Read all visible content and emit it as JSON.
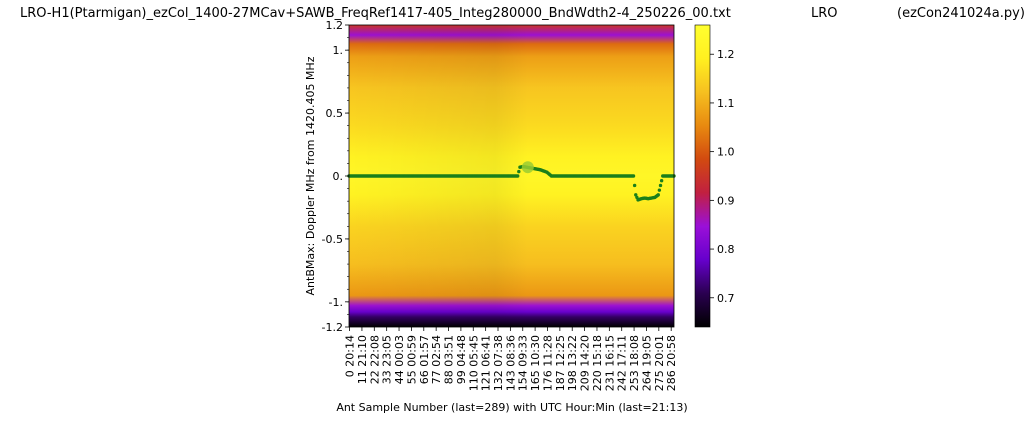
{
  "titles": {
    "main": "LRO-H1(Ptarmigan)_ezCol_1400-27MCav+SAWB_FreqRef1417-405_Integ280000_BndWdth2-4_250226_00.txt",
    "mid": "LRO",
    "right": "(ezCon241024a.py)"
  },
  "chart_data": {
    "type": "heatmap",
    "xlabel": "Ant Sample Number (last=289) with UTC Hour:Min (last=21:13)",
    "ylabel": "AntBMax:  Doppler MHz from 1420.405 MHz",
    "xlim": [
      0,
      289
    ],
    "ylim": [
      -1.2,
      1.2
    ],
    "y_ticks": [
      {
        "value": 1.2,
        "label": "1.2"
      },
      {
        "value": 1.0,
        "label": "1."
      },
      {
        "value": 0.5,
        "label": "0.5"
      },
      {
        "value": 0.0,
        "label": "0."
      },
      {
        "value": -0.5,
        "label": "-0.5"
      },
      {
        "value": -1.0,
        "label": "-1."
      },
      {
        "value": -1.2,
        "label": "-1.2"
      }
    ],
    "x_ticks": [
      {
        "value": 0,
        "label": "0  20:14"
      },
      {
        "value": 11,
        "label": "11  21:10"
      },
      {
        "value": 22,
        "label": "22  22:08"
      },
      {
        "value": 33,
        "label": "33  23:05"
      },
      {
        "value": 44,
        "label": "44  00:03"
      },
      {
        "value": 55,
        "label": "55  00:59"
      },
      {
        "value": 66,
        "label": "66  01:57"
      },
      {
        "value": 77,
        "label": "77  02:54"
      },
      {
        "value": 88,
        "label": "88  03:51"
      },
      {
        "value": 99,
        "label": "99  04:48"
      },
      {
        "value": 110,
        "label": "110  05:45"
      },
      {
        "value": 121,
        "label": "121  06:41"
      },
      {
        "value": 132,
        "label": "132  07:38"
      },
      {
        "value": 143,
        "label": "143  08:36"
      },
      {
        "value": 154,
        "label": "154  09:33"
      },
      {
        "value": 165,
        "label": "165  10:30"
      },
      {
        "value": 176,
        "label": "176  11:28"
      },
      {
        "value": 187,
        "label": "187  12:25"
      },
      {
        "value": 198,
        "label": "198  13:22"
      },
      {
        "value": 209,
        "label": "209  14:20"
      },
      {
        "value": 220,
        "label": "220  15:18"
      },
      {
        "value": 231,
        "label": "231  16:15"
      },
      {
        "value": 242,
        "label": "242  17:11"
      },
      {
        "value": 253,
        "label": "253  18:08"
      },
      {
        "value": 264,
        "label": "264  19:05"
      },
      {
        "value": 275,
        "label": "275  20:01"
      },
      {
        "value": 286,
        "label": "286  20:58"
      }
    ],
    "colorbar": {
      "min": 0.64,
      "max": 1.26,
      "ticks": [
        {
          "value": 1.2,
          "label": "1.2"
        },
        {
          "value": 1.1,
          "label": "1.1"
        },
        {
          "value": 1.0,
          "label": "1.0"
        },
        {
          "value": 0.9,
          "label": "0.9"
        },
        {
          "value": 0.8,
          "label": "0.8"
        },
        {
          "value": 0.7,
          "label": "0.7"
        }
      ],
      "colormap": [
        "#000000",
        "#2a0050",
        "#6600cc",
        "#9a10d8",
        "#c12040",
        "#d24a10",
        "#e88a10",
        "#f6c020",
        "#fff020",
        "#ffff30"
      ]
    },
    "heatmap_profile": [
      {
        "y": 1.2,
        "value": 0.95
      },
      {
        "y": 1.12,
        "value": 0.85
      },
      {
        "y": 1.05,
        "value": 1.02
      },
      {
        "y": 0.95,
        "value": 1.08
      },
      {
        "y": 0.7,
        "value": 1.13
      },
      {
        "y": 0.4,
        "value": 1.16
      },
      {
        "y": 0.15,
        "value": 1.2
      },
      {
        "y": 0.0,
        "value": 1.22
      },
      {
        "y": -0.15,
        "value": 1.2
      },
      {
        "y": -0.4,
        "value": 1.15
      },
      {
        "y": -0.7,
        "value": 1.12
      },
      {
        "y": -0.95,
        "value": 1.07
      },
      {
        "y": -1.03,
        "value": 0.85
      },
      {
        "y": -1.08,
        "value": 0.78
      },
      {
        "y": -1.12,
        "value": 0.72
      },
      {
        "y": -1.2,
        "value": 0.64
      }
    ],
    "series": [
      {
        "points": [
          [
            0,
            0.0
          ],
          [
            150,
            0.0
          ],
          [
            152,
            0.07
          ],
          [
            155,
            0.075
          ],
          [
            158,
            0.07
          ],
          [
            161,
            0.065
          ],
          [
            164,
            0.06
          ],
          [
            167,
            0.055
          ],
          [
            170,
            0.05
          ],
          [
            173,
            0.04
          ],
          [
            176,
            0.03
          ],
          [
            178,
            0.015
          ],
          [
            180,
            0.0
          ],
          [
            253,
            0.0
          ],
          [
            255,
            -0.15
          ],
          [
            257,
            -0.19
          ],
          [
            260,
            -0.18
          ],
          [
            263,
            -0.175
          ],
          [
            266,
            -0.18
          ],
          [
            269,
            -0.175
          ],
          [
            272,
            -0.17
          ],
          [
            275,
            -0.15
          ],
          [
            279,
            0.0
          ],
          [
            289,
            0.0
          ]
        ]
      }
    ],
    "marker": {
      "x": 159,
      "y": 0.07
    }
  }
}
